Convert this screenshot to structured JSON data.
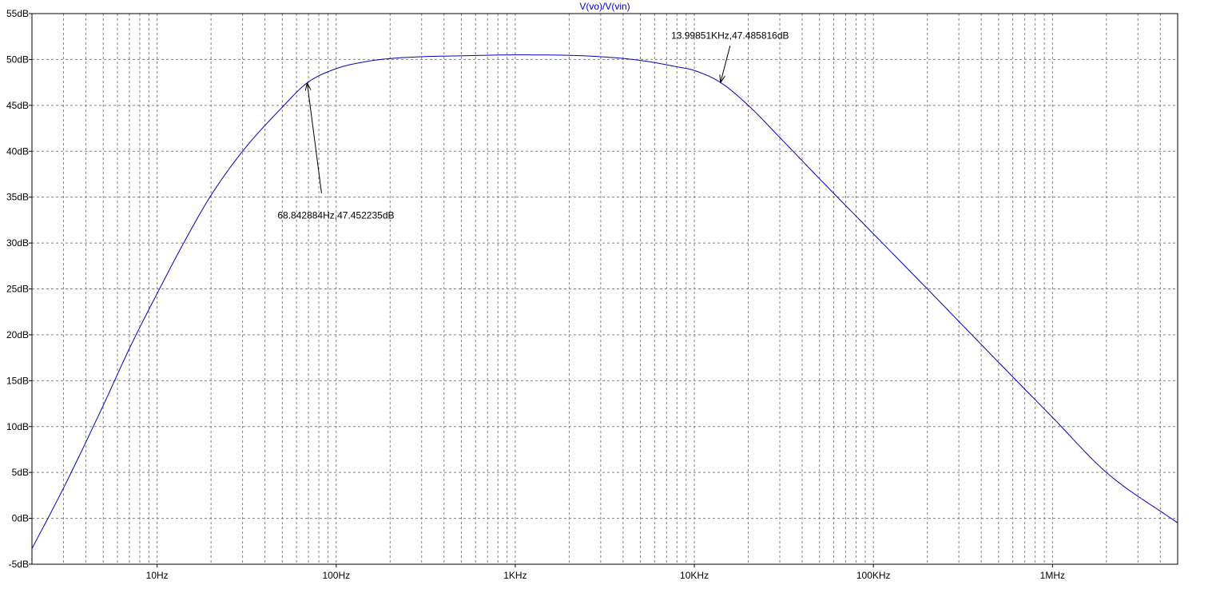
{
  "chart_data": {
    "type": "line",
    "title": "V(vo)/V(vin)",
    "x_scale": "log",
    "xlim_hz": [
      2,
      5000000
    ],
    "ylim_db": [
      -5,
      55
    ],
    "grid": true,
    "x_ticks": [
      {
        "value": 10,
        "label": "10Hz"
      },
      {
        "value": 100,
        "label": "100Hz"
      },
      {
        "value": 1000,
        "label": "1KHz"
      },
      {
        "value": 10000,
        "label": "10KHz"
      },
      {
        "value": 100000,
        "label": "100KHz"
      },
      {
        "value": 1000000,
        "label": "1MHz"
      }
    ],
    "y_ticks": [
      {
        "value": 55,
        "label": "55dB"
      },
      {
        "value": 50,
        "label": "50dB"
      },
      {
        "value": 45,
        "label": "45dB"
      },
      {
        "value": 40,
        "label": "40dB"
      },
      {
        "value": 35,
        "label": "35dB"
      },
      {
        "value": 30,
        "label": "30dB"
      },
      {
        "value": 25,
        "label": "25dB"
      },
      {
        "value": 20,
        "label": "20dB"
      },
      {
        "value": 15,
        "label": "15dB"
      },
      {
        "value": 10,
        "label": "10dB"
      },
      {
        "value": 5,
        "label": "5dB"
      },
      {
        "value": 0,
        "label": "0dB"
      },
      {
        "value": -5,
        "label": "-5dB"
      }
    ],
    "series": [
      {
        "name": "V(vo)/V(vin)",
        "color": "#0000c0",
        "x_hz": [
          2,
          3,
          5,
          7,
          10,
          15,
          20,
          30,
          50,
          68.84,
          100,
          150,
          200,
          300,
          500,
          1000,
          2000,
          3000,
          5000,
          8000,
          10000,
          13998.5,
          20000,
          30000,
          50000,
          100000,
          200000,
          500000,
          1000000,
          2000000,
          5000000
        ],
        "y_db": [
          -3.3,
          3.3,
          12.3,
          18.5,
          24.5,
          31.0,
          35.2,
          40.0,
          44.8,
          47.45,
          49.0,
          49.8,
          50.1,
          50.3,
          50.4,
          50.5,
          50.45,
          50.3,
          49.9,
          49.2,
          48.8,
          47.49,
          45.0,
          41.5,
          37.0,
          31.0,
          25.0,
          17.0,
          11.0,
          5.0,
          -0.5
        ]
      }
    ],
    "annotations": [
      {
        "label": "68.842884Hz,47.452235dB",
        "x_hz": 68.842884,
        "y_db": 47.452235
      },
      {
        "label": "13.99851KHz,47.485816dB",
        "x_hz": 13998.51,
        "y_db": 47.485816
      }
    ]
  }
}
